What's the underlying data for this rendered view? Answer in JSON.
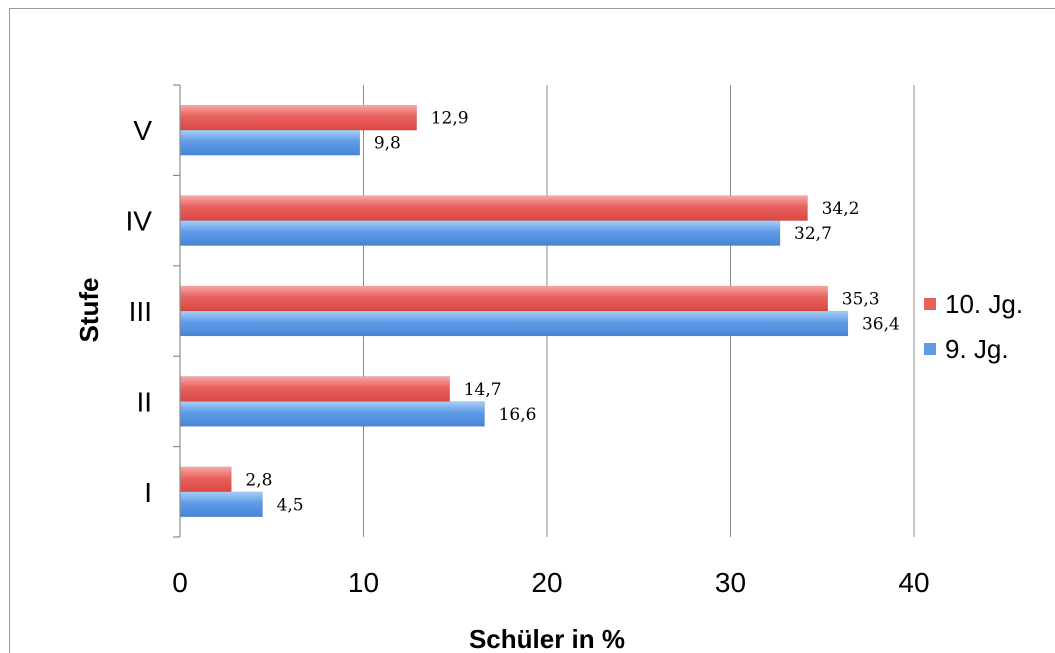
{
  "chart_data": {
    "type": "bar",
    "orientation": "horizontal",
    "categories": [
      "I",
      "II",
      "III",
      "IV",
      "V"
    ],
    "series": [
      {
        "name": "10. Jg.",
        "color": "#e8605c",
        "values": [
          2.8,
          14.7,
          35.3,
          34.2,
          12.9
        ],
        "labels": [
          "2,8",
          "14,7",
          "35,3",
          "34,2",
          "12,9"
        ]
      },
      {
        "name": "9. Jg.",
        "color": "#5e9be6",
        "values": [
          4.5,
          16.6,
          36.4,
          32.7,
          9.8
        ],
        "labels": [
          "4,5",
          "16,6",
          "36,4",
          "32,7",
          "9,8"
        ]
      }
    ],
    "xlabel": "Schüler in %",
    "ylabel": "Stufe",
    "xlim": [
      0,
      40
    ],
    "xticks": [
      0,
      10,
      20,
      30,
      40
    ],
    "xtick_labels": [
      "0",
      "10",
      "20",
      "30",
      "40"
    ],
    "grid": "vertical",
    "legend_position": "right"
  }
}
